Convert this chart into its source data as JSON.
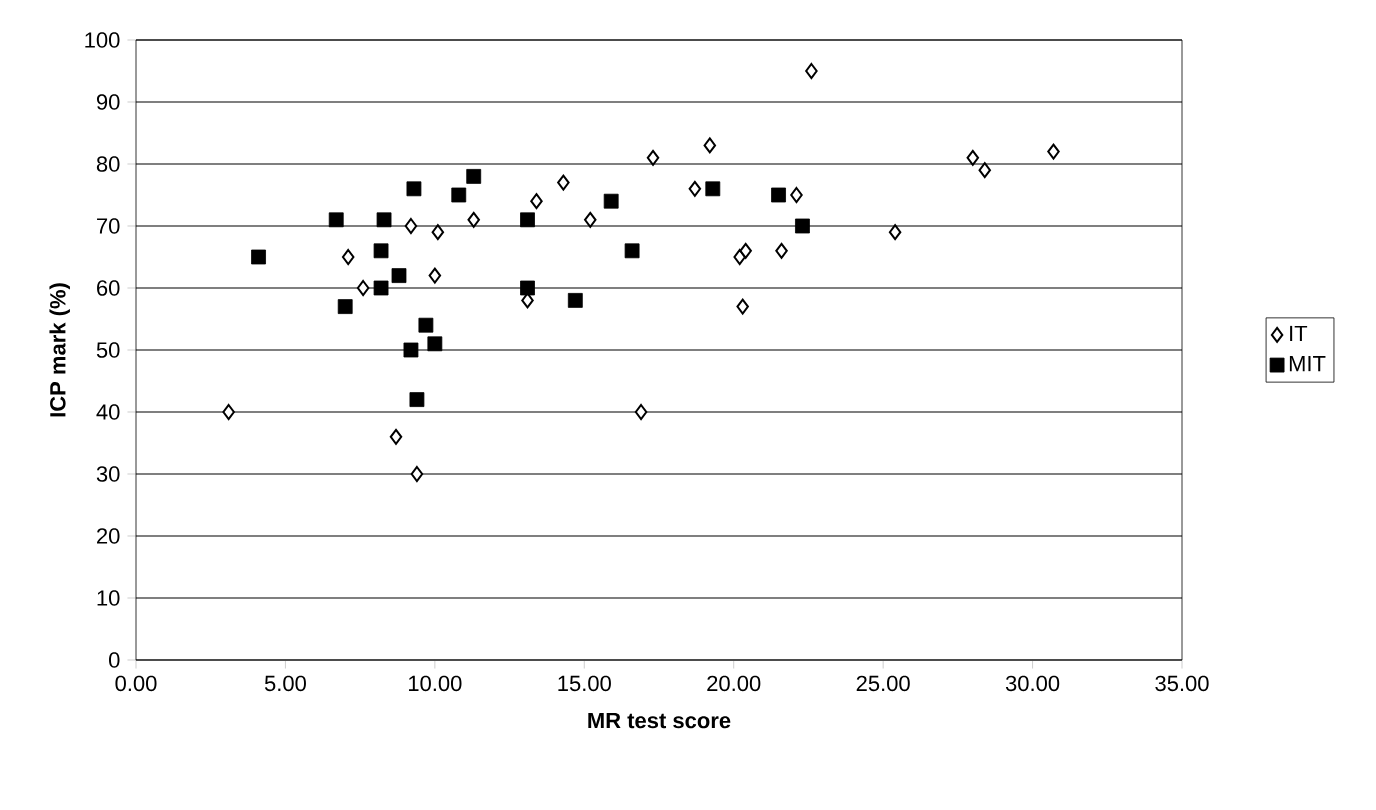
{
  "chart_data": {
    "type": "scatter",
    "xlabel": "MR test score",
    "ylabel": "ICP mark (%)",
    "xlim": [
      0,
      35
    ],
    "xticks": [
      {
        "value": 0,
        "label": "0.00"
      },
      {
        "value": 5,
        "label": "5.00"
      },
      {
        "value": 10,
        "label": "10.00"
      },
      {
        "value": 15,
        "label": "15.00"
      },
      {
        "value": 20,
        "label": "20.00"
      },
      {
        "value": 25,
        "label": "25.00"
      },
      {
        "value": 30,
        "label": "30.00"
      },
      {
        "value": 35,
        "label": "35.00"
      }
    ],
    "ylim": [
      0,
      100
    ],
    "yticks": [
      0,
      10,
      20,
      30,
      40,
      50,
      60,
      70,
      80,
      90,
      100
    ],
    "grid": "y",
    "legend": "right",
    "series": [
      {
        "name": "IT",
        "color": "#000000",
        "marker": "diamond",
        "x": [
          3.1,
          7.1,
          7.6,
          8.7,
          9.2,
          9.4,
          10.1,
          10.0,
          11.3,
          13.1,
          13.4,
          14.3,
          15.2,
          16.9,
          17.3,
          22.6,
          19.2,
          18.7,
          22.1,
          20.2,
          20.4,
          21.6,
          20.3,
          25.4,
          28.0,
          28.4,
          30.7
        ],
        "values": [
          40,
          65,
          60,
          36,
          70,
          30,
          69,
          62,
          71,
          58,
          74,
          77,
          71,
          40,
          81,
          95,
          83,
          76,
          75,
          65,
          66,
          66,
          57,
          69,
          81,
          79,
          82
        ]
      },
      {
        "name": "MIT",
        "color": "#000000",
        "marker": "square",
        "x": [
          4.1,
          6.7,
          7.0,
          8.3,
          8.2,
          8.2,
          8.8,
          9.3,
          9.2,
          9.7,
          10.0,
          9.4,
          10.8,
          11.3,
          13.1,
          13.1,
          14.7,
          15.9,
          16.6,
          19.3,
          21.5,
          22.3
        ],
        "values": [
          65,
          71,
          57,
          71,
          66,
          60,
          62,
          76,
          50,
          54,
          51,
          42,
          75,
          78,
          71,
          60,
          58,
          74,
          66,
          76,
          75,
          70
        ]
      }
    ]
  }
}
